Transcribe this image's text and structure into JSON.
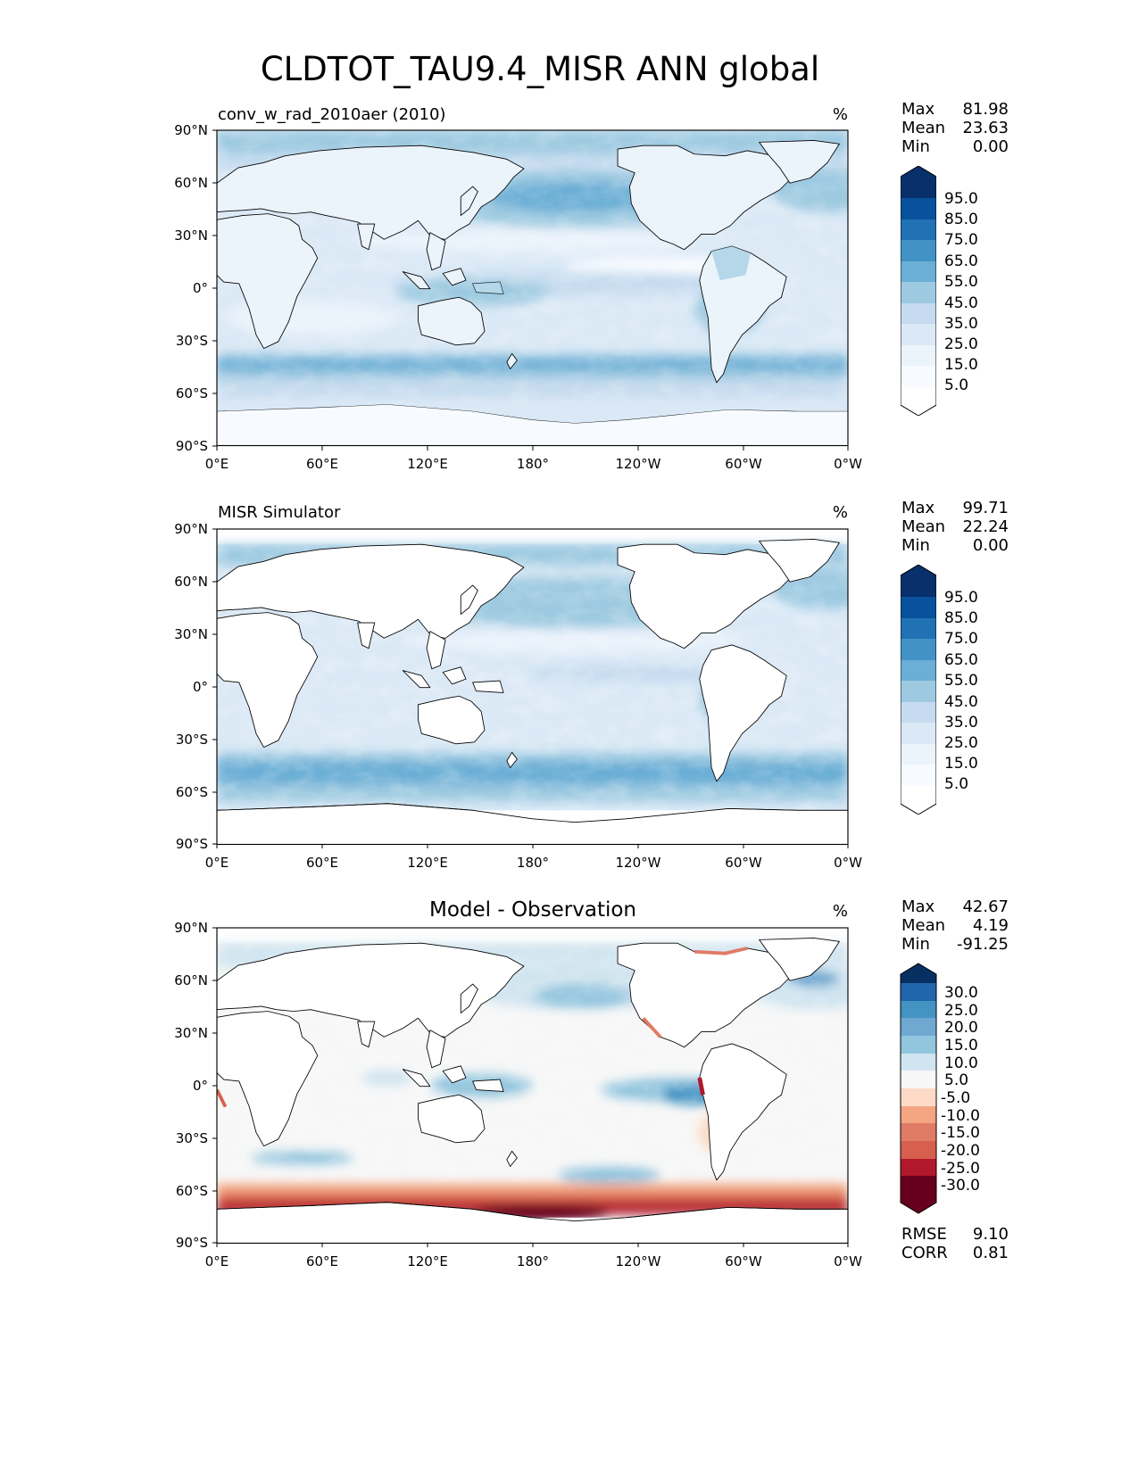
{
  "chart_data": {
    "title": "CLDTOT_TAU9.4_MISR ANN global",
    "type": "map",
    "x_ticks": [
      "0°E",
      "60°E",
      "120°E",
      "180°",
      "120°W",
      "60°W",
      "0°W"
    ],
    "y_ticks": [
      "90°N",
      "60°N",
      "30°N",
      "0°",
      "30°S",
      "60°S",
      "90°S"
    ],
    "panels": [
      {
        "id": "test",
        "title_left": "conv_w_rad_2010aer (2010)",
        "title_center": "",
        "units": "%",
        "stats": [
          {
            "label": "Max",
            "value": "81.98"
          },
          {
            "label": "Mean",
            "value": "23.63"
          },
          {
            "label": "Min",
            "value": "0.00"
          }
        ],
        "colorbar": {
          "extend": "both",
          "tick_labels": [
            "95.0",
            "85.0",
            "75.0",
            "65.0",
            "55.0",
            "45.0",
            "35.0",
            "25.0",
            "15.0",
            "5.0"
          ],
          "colors": [
            "#08306b",
            "#08519c",
            "#2171b5",
            "#4292c6",
            "#6baed6",
            "#9ecae1",
            "#c6dbef",
            "#dbe9f6",
            "#ebf3fb",
            "#f7fbff",
            "#ffffff"
          ]
        }
      },
      {
        "id": "reference",
        "title_left": "MISR Simulator",
        "title_center": "",
        "units": "%",
        "stats": [
          {
            "label": "Max",
            "value": "99.71"
          },
          {
            "label": "Mean",
            "value": "22.24"
          },
          {
            "label": "Min",
            "value": "0.00"
          }
        ],
        "colorbar": {
          "extend": "both",
          "tick_labels": [
            "95.0",
            "85.0",
            "75.0",
            "65.0",
            "55.0",
            "45.0",
            "35.0",
            "25.0",
            "15.0",
            "5.0"
          ],
          "colors": [
            "#08306b",
            "#08519c",
            "#2171b5",
            "#4292c6",
            "#6baed6",
            "#9ecae1",
            "#c6dbef",
            "#dbe9f6",
            "#ebf3fb",
            "#f7fbff",
            "#ffffff"
          ]
        }
      },
      {
        "id": "diff",
        "title_left": "",
        "title_center": "Model - Observation",
        "units": "%",
        "stats": [
          {
            "label": "Max",
            "value": "42.67"
          },
          {
            "label": "Mean",
            "value": "4.19"
          },
          {
            "label": "Min",
            "value": "-91.25"
          }
        ],
        "extra_stats": [
          {
            "label": "RMSE",
            "value": "9.10"
          },
          {
            "label": "CORR",
            "value": "0.81"
          }
        ],
        "colorbar": {
          "extend": "both",
          "tick_labels": [
            "30.0",
            "25.0",
            "20.0",
            "15.0",
            "10.0",
            "5.0",
            "-5.0",
            "-10.0",
            "-15.0",
            "-20.0",
            "-25.0",
            "-30.0"
          ],
          "colors": [
            "#053061",
            "#2166ac",
            "#4393c3",
            "#6fa8d1",
            "#92c5de",
            "#d1e5f0",
            "#f7f7f7",
            "#fddbc7",
            "#f4a582",
            "#e07b65",
            "#d6604d",
            "#b2182b",
            "#67001f"
          ]
        }
      }
    ]
  }
}
